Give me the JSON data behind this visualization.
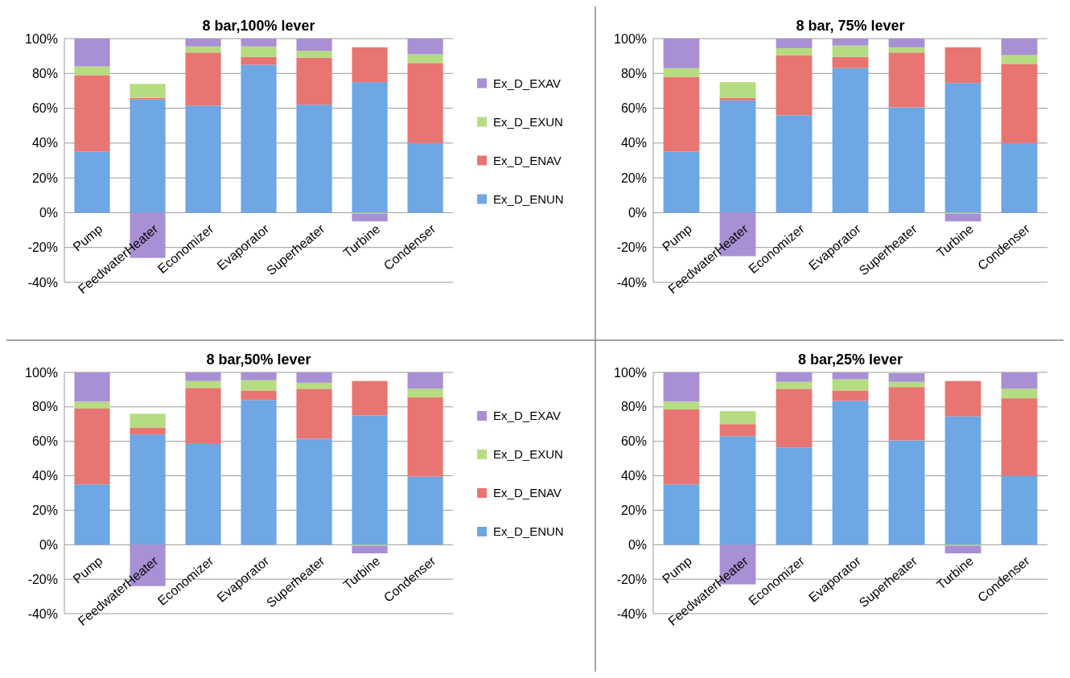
{
  "chart_data": [
    {
      "type": "bar",
      "title": "8 bar,100% lever",
      "stacked": true,
      "grid": "y",
      "legend": "right",
      "categories": [
        "Pump",
        "FeedwaterHeater",
        "Economizer",
        "Evaporator",
        "Superheater",
        "Turbine",
        "Condenser"
      ],
      "ylim": [
        -40,
        100
      ],
      "yticks": [
        {
          "value": -40,
          "label": "-40%"
        },
        {
          "value": -20,
          "label": "-20%"
        },
        {
          "value": 0,
          "label": "0%"
        },
        {
          "value": 20,
          "label": "20%"
        },
        {
          "value": 40,
          "label": "40%"
        },
        {
          "value": 60,
          "label": "60%"
        },
        {
          "value": 80,
          "label": "80%"
        },
        {
          "value": 100,
          "label": "100%"
        }
      ],
      "series": [
        {
          "name": "Ex_D_ENUN",
          "color": "#6fa6e4",
          "values": [
            35,
            65,
            61.5,
            85,
            62,
            75,
            40
          ]
        },
        {
          "name": "Ex_D_ENAV",
          "color": "#e87571",
          "values": [
            44,
            1,
            30.5,
            4.5,
            27,
            20,
            46
          ]
        },
        {
          "name": "Ex_D_EXUN",
          "color": "#b5dc80",
          "values": [
            5,
            8,
            3.5,
            6,
            4,
            -0.5,
            5
          ]
        },
        {
          "name": "Ex_D_EXAV",
          "color": "#a98fd4",
          "values": [
            16,
            -26,
            4.5,
            4.5,
            7,
            -4.5,
            9
          ]
        }
      ]
    },
    {
      "type": "bar",
      "title": "8 bar, 75% lever",
      "stacked": true,
      "grid": "y",
      "categories": [
        "Pump",
        "FeedwaterHeater",
        "Economizer",
        "Evaporator",
        "Superheater",
        "Turbine",
        "Condenser"
      ],
      "ylim": [
        -40,
        100
      ],
      "yticks": [
        {
          "value": -40,
          "label": "-40%"
        },
        {
          "value": -20,
          "label": "-20%"
        },
        {
          "value": 0,
          "label": "0%"
        },
        {
          "value": 20,
          "label": "20%"
        },
        {
          "value": 40,
          "label": "40%"
        },
        {
          "value": 60,
          "label": "60%"
        },
        {
          "value": 80,
          "label": "80%"
        },
        {
          "value": 100,
          "label": "100%"
        }
      ],
      "series": [
        {
          "color": "#6fa6e4",
          "values": [
            35,
            64.5,
            56,
            83,
            60.5,
            74.5,
            40
          ]
        },
        {
          "color": "#e87571",
          "values": [
            43,
            1.5,
            34.5,
            6.5,
            31.5,
            20.5,
            45.5
          ]
        },
        {
          "color": "#b5dc80",
          "values": [
            5,
            9,
            4,
            6.5,
            3,
            -0.5,
            5
          ]
        },
        {
          "color": "#a98fd4",
          "values": [
            17,
            -25,
            5.5,
            4,
            5,
            -4.5,
            9.5
          ]
        }
      ]
    },
    {
      "type": "bar",
      "title": "8 bar,50% lever",
      "stacked": true,
      "grid": "y",
      "legend": "right",
      "categories": [
        "Pump",
        "FeedwaterHeater",
        "Economizer",
        "Evaporator",
        "Superheater",
        "Turbine",
        "Condenser"
      ],
      "ylim": [
        -40,
        100
      ],
      "yticks": [
        {
          "value": -40,
          "label": "-40%"
        },
        {
          "value": -20,
          "label": "-20%"
        },
        {
          "value": 0,
          "label": "0%"
        },
        {
          "value": 20,
          "label": "20%"
        },
        {
          "value": 40,
          "label": "40%"
        },
        {
          "value": 60,
          "label": "60%"
        },
        {
          "value": 80,
          "label": "80%"
        },
        {
          "value": 100,
          "label": "100%"
        }
      ],
      "series": [
        {
          "name": "Ex_D_ENUN",
          "color": "#6fa6e4",
          "values": [
            35,
            64,
            58.5,
            84,
            61.5,
            75,
            39.5
          ]
        },
        {
          "name": "Ex_D_ENAV",
          "color": "#e87571",
          "values": [
            44,
            4,
            32.5,
            5.5,
            29,
            20,
            46
          ]
        },
        {
          "name": "Ex_D_EXUN",
          "color": "#b5dc80",
          "values": [
            4,
            8,
            4,
            6,
            3.5,
            -0.5,
            5
          ]
        },
        {
          "name": "Ex_D_EXAV",
          "color": "#a98fd4",
          "values": [
            17,
            -24,
            5,
            4.5,
            6,
            -4.5,
            9.5
          ]
        }
      ]
    },
    {
      "type": "bar",
      "title": "8 bar,25% lever",
      "stacked": true,
      "grid": "y",
      "categories": [
        "Pump",
        "FeedwaterHeater",
        "Economizer",
        "Evaporator",
        "Superheater",
        "Turbine",
        "Condenser"
      ],
      "ylim": [
        -40,
        100
      ],
      "yticks": [
        {
          "value": -40,
          "label": "-40%"
        },
        {
          "value": -20,
          "label": "-20%"
        },
        {
          "value": 0,
          "label": "0%"
        },
        {
          "value": 20,
          "label": "20%"
        },
        {
          "value": 40,
          "label": "40%"
        },
        {
          "value": 60,
          "label": "60%"
        },
        {
          "value": 80,
          "label": "80%"
        },
        {
          "value": 100,
          "label": "100%"
        }
      ],
      "series": [
        {
          "color": "#6fa6e4",
          "values": [
            35,
            63,
            56.5,
            83.5,
            60.5,
            74.5,
            40
          ]
        },
        {
          "color": "#e87571",
          "values": [
            43.5,
            7,
            34,
            6,
            31,
            20.5,
            45
          ]
        },
        {
          "color": "#b5dc80",
          "values": [
            4.5,
            7.5,
            4,
            6.5,
            3,
            -0.5,
            5.5
          ]
        },
        {
          "color": "#a98fd4",
          "values": [
            17,
            -23,
            5.5,
            4,
            5,
            -4.5,
            9.5
          ]
        }
      ]
    }
  ]
}
